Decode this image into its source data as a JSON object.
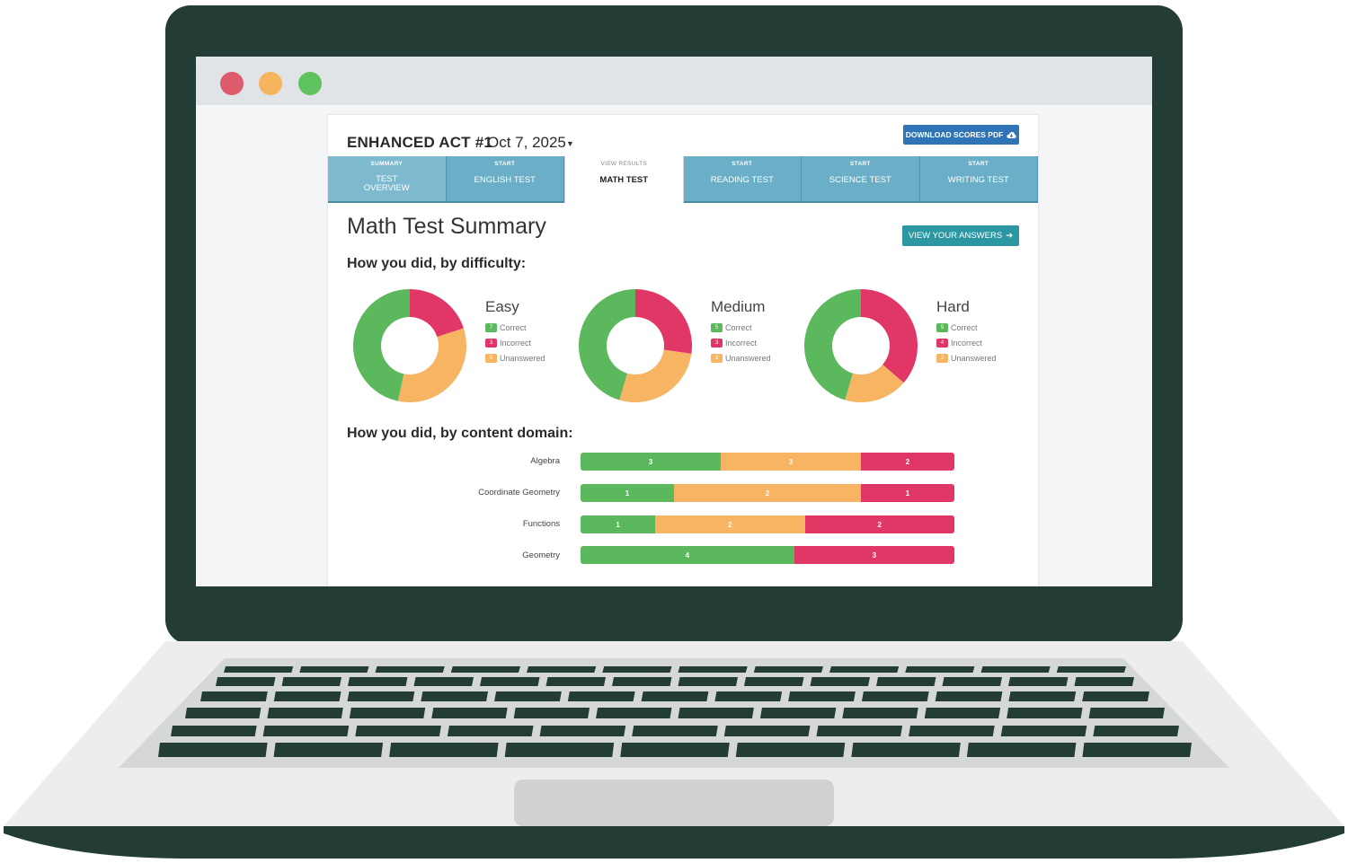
{
  "window": {
    "controls": [
      "close",
      "minimize",
      "maximize"
    ]
  },
  "header": {
    "test_name": "ENHANCED ACT #1",
    "test_date": "Oct 7, 2025",
    "download_button": "DOWNLOAD SCORES PDF"
  },
  "tabs": [
    {
      "small": "SUMMARY",
      "label_line1": "TEST",
      "label_line2": "OVERVIEW",
      "active": false
    },
    {
      "small": "START",
      "label_line1": "ENGLISH TEST",
      "label_line2": "",
      "active": false
    },
    {
      "small": "VIEW RESULTS",
      "label_line1": "MATH TEST",
      "label_line2": "",
      "active": true
    },
    {
      "small": "START",
      "label_line1": "READING TEST",
      "label_line2": "",
      "active": false
    },
    {
      "small": "START",
      "label_line1": "SCIENCE TEST",
      "label_line2": "",
      "active": false
    },
    {
      "small": "START",
      "label_line1": "WRITING TEST",
      "label_line2": "",
      "active": false
    }
  ],
  "summary_title": "Math Test Summary",
  "view_answers_button": "VIEW YOUR ANSWERS",
  "difficulty_heading": "How you did, by difficulty:",
  "content_heading": "How you did, by content domain:",
  "legend_labels": {
    "correct": "Correct",
    "incorrect": "Incorrect",
    "unanswered": "Unanswered"
  },
  "colors": {
    "correct": "#5cb85c",
    "incorrect": "#e03767",
    "unanswered": "#f7b462",
    "primary_button": "#2f74b7",
    "teal_button": "#2a97a3",
    "tab": "#6aaec7"
  },
  "chart_data": [
    {
      "type": "pie",
      "title": "Easy",
      "categories": [
        "Correct",
        "Incorrect",
        "Unanswered"
      ],
      "values": [
        7,
        3,
        5
      ]
    },
    {
      "type": "pie",
      "title": "Medium",
      "categories": [
        "Correct",
        "Incorrect",
        "Unanswered"
      ],
      "values": [
        5,
        3,
        3
      ]
    },
    {
      "type": "pie",
      "title": "Hard",
      "categories": [
        "Correct",
        "Incorrect",
        "Unanswered"
      ],
      "values": [
        5,
        4,
        2
      ]
    },
    {
      "type": "bar",
      "orientation": "horizontal",
      "stacked": true,
      "categories": [
        "Algebra",
        "Coordinate Geometry",
        "Functions",
        "Geometry"
      ],
      "series": [
        {
          "name": "Correct",
          "values": [
            3,
            1,
            1,
            4
          ]
        },
        {
          "name": "Unanswered",
          "values": [
            3,
            2,
            2,
            0
          ]
        },
        {
          "name": "Incorrect",
          "values": [
            2,
            1,
            2,
            3
          ]
        }
      ]
    }
  ]
}
